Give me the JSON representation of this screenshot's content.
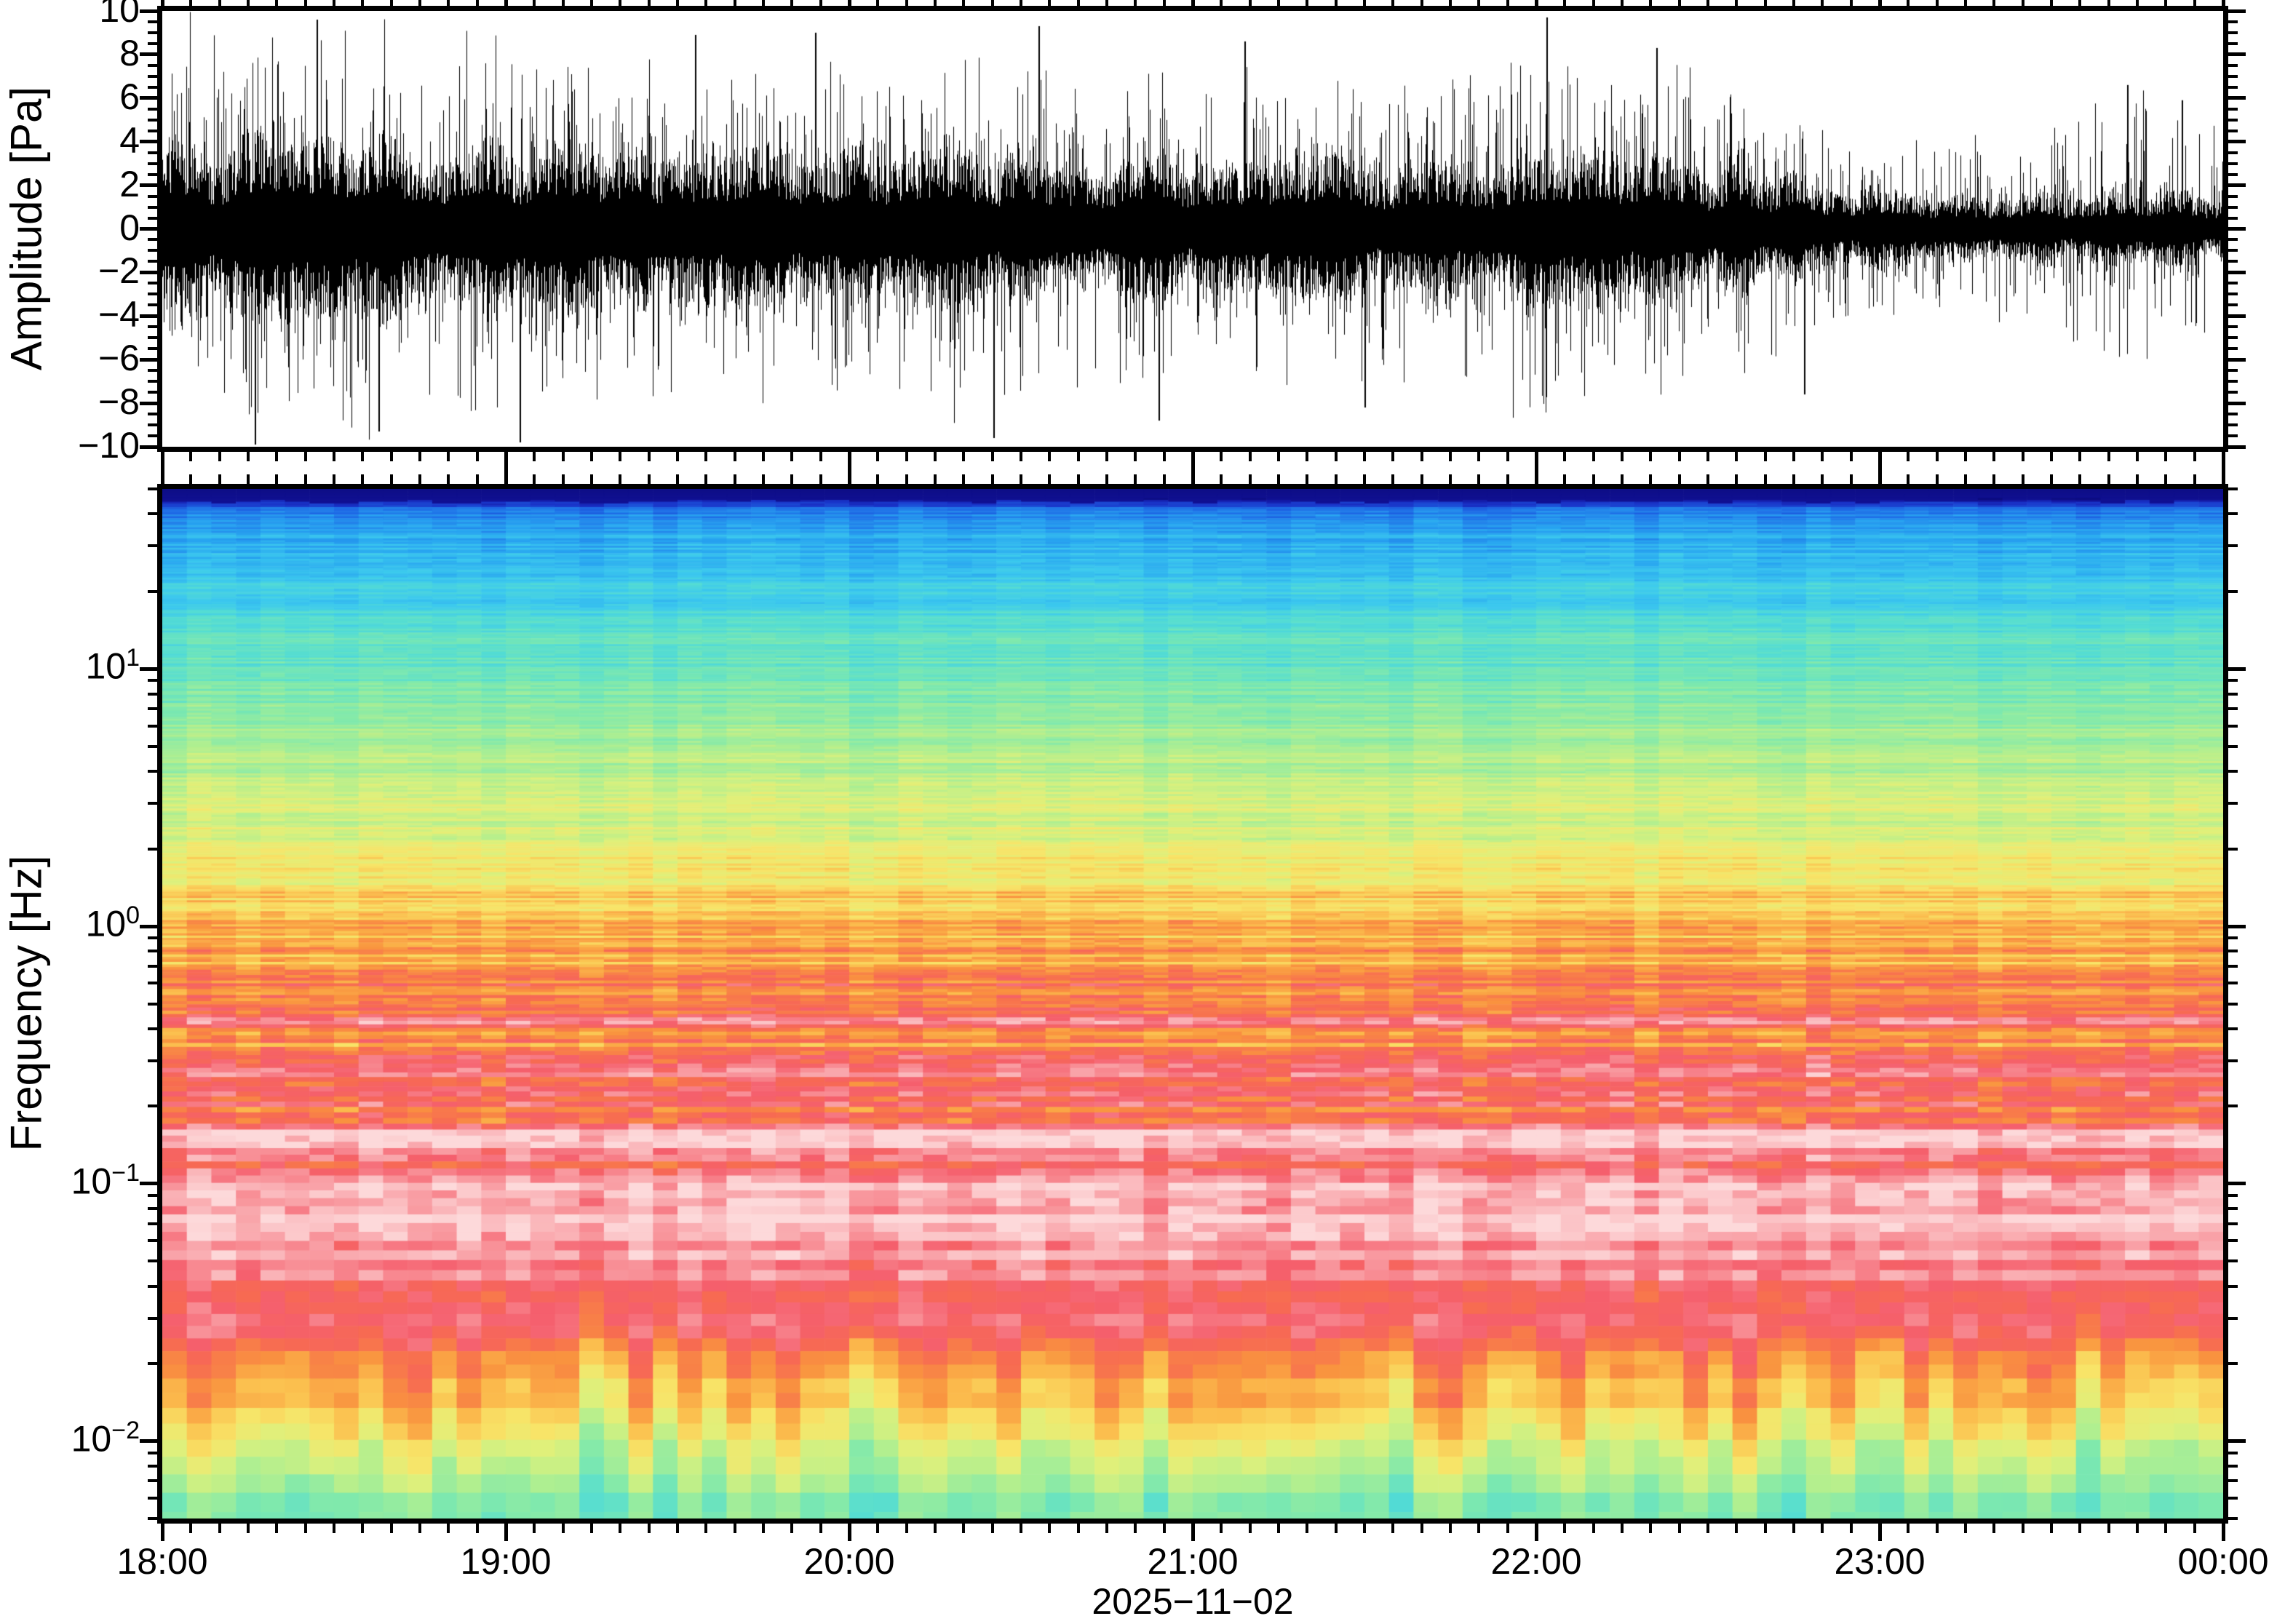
{
  "figure": {
    "background": "#ffffff",
    "kind": "seismo-acoustic waveform and spectrogram",
    "frame_color": "#000000"
  },
  "axes": {
    "amplitude": {
      "title": "Amplitude [Pa]",
      "range": [
        -10,
        10
      ],
      "tick_labels": [
        "10",
        "8",
        "6",
        "4",
        "2",
        "0",
        "−2",
        "−4",
        "−6",
        "−8",
        "−10"
      ],
      "tick_values": [
        10,
        8,
        6,
        4,
        2,
        0,
        -2,
        -4,
        -6,
        -8,
        -10
      ],
      "minor_step": 0.5
    },
    "frequency": {
      "title": "Frequency [Hz]",
      "scale": "log",
      "range_hz": [
        0.005,
        50
      ],
      "decades": [
        {
          "base": "10",
          "exp": "1",
          "value": 10
        },
        {
          "base": "10",
          "exp": "0",
          "value": 1
        },
        {
          "base": "10",
          "exp": "−1",
          "value": 0.1
        },
        {
          "base": "10",
          "exp": "−2",
          "value": 0.01
        }
      ]
    },
    "time": {
      "hour_labels": [
        "18:00",
        "19:00",
        "20:00",
        "21:00",
        "22:00",
        "23:00",
        "00:00"
      ],
      "minor_interval_minutes": 5,
      "date": "2025−11−02"
    }
  },
  "chart_data": [
    {
      "type": "line",
      "name": "pressure-waveform",
      "title": "",
      "ylabel": "Amplitude [Pa]",
      "xlabel": "",
      "x_range_hours": [
        0,
        6
      ],
      "ylim": [
        -10,
        10
      ],
      "line_color": "#000000",
      "envelope_hours": [
        0,
        0.25,
        0.5,
        0.75,
        1,
        1.25,
        1.5,
        1.75,
        2,
        2.25,
        2.5,
        2.75,
        3,
        3.25,
        3.5,
        3.75,
        4,
        4.25,
        4.5,
        4.65,
        4.8,
        5,
        5.15,
        5.3,
        5.5,
        5.7,
        5.85,
        6
      ],
      "envelope_core_pa": [
        2.7,
        2.95,
        3.05,
        2.9,
        2.8,
        2.65,
        2.6,
        2.5,
        2.45,
        2.4,
        2.35,
        2.3,
        2.3,
        2.25,
        2.25,
        2.2,
        2.35,
        2.3,
        2.2,
        2.05,
        1.7,
        1.3,
        1.1,
        1.05,
        1.1,
        1.2,
        1.15,
        1.15
      ],
      "envelope_peak_pa": [
        9.3,
        9.7,
        9.4,
        9.0,
        9.5,
        8.2,
        7.8,
        7.6,
        7.9,
        8.6,
        7.6,
        7.3,
        7.2,
        7.4,
        7.1,
        7.0,
        9.6,
        7.4,
        7.7,
        6.5,
        5.2,
        4.2,
        4.0,
        4.4,
        4.8,
        6.6,
        5.6,
        5.2
      ],
      "extreme_spikes": [
        {
          "t_hours": 0.27,
          "amp_pa": -9.9
        },
        {
          "t_hours": 0.45,
          "amp_pa": 9.6
        },
        {
          "t_hours": 0.63,
          "amp_pa": -9.3
        },
        {
          "t_hours": 1.04,
          "amp_pa": -9.8
        },
        {
          "t_hours": 1.55,
          "amp_pa": 8.9
        },
        {
          "t_hours": 1.9,
          "amp_pa": 9.0
        },
        {
          "t_hours": 2.42,
          "amp_pa": -9.6
        },
        {
          "t_hours": 2.55,
          "amp_pa": 9.3
        },
        {
          "t_hours": 2.9,
          "amp_pa": -8.8
        },
        {
          "t_hours": 3.15,
          "amp_pa": 8.6
        },
        {
          "t_hours": 3.5,
          "amp_pa": -8.2
        },
        {
          "t_hours": 4.03,
          "amp_pa": 9.7
        },
        {
          "t_hours": 4.35,
          "amp_pa": 8.3
        },
        {
          "t_hours": 4.78,
          "amp_pa": -7.6
        },
        {
          "t_hours": 5.72,
          "amp_pa": 6.6
        },
        {
          "t_hours": 5.88,
          "amp_pa": 5.9
        }
      ]
    },
    {
      "type": "heatmap",
      "name": "spectrogram",
      "ylabel": "Frequency [Hz]",
      "xlabel": "2025−11−02",
      "x_range_hours": [
        0,
        6
      ],
      "freq_range_hz": [
        0.005,
        50
      ],
      "columns": 84,
      "column_minutes": 4.3,
      "colormap_stops": [
        [
          0.0,
          "#0a0a78"
        ],
        [
          0.05,
          "#12129b"
        ],
        [
          0.1,
          "#1933c8"
        ],
        [
          0.17,
          "#1e6ae6"
        ],
        [
          0.24,
          "#27a3f0"
        ],
        [
          0.31,
          "#3cc9ee"
        ],
        [
          0.38,
          "#55ddd2"
        ],
        [
          0.45,
          "#7fe9ad"
        ],
        [
          0.52,
          "#b2ef8f"
        ],
        [
          0.58,
          "#dff07b"
        ],
        [
          0.64,
          "#f8e468"
        ],
        [
          0.7,
          "#fbbf4e"
        ],
        [
          0.76,
          "#f9933f"
        ],
        [
          0.82,
          "#f76a52"
        ],
        [
          0.875,
          "#f55f6d"
        ],
        [
          0.92,
          "#f88f96"
        ],
        [
          0.96,
          "#fab4b8"
        ],
        [
          1.0,
          "#fdd9da"
        ]
      ],
      "power_profile_stops": [
        [
          0.0,
          0.03
        ],
        [
          0.011,
          0.06
        ],
        [
          0.018,
          0.16
        ],
        [
          0.035,
          0.24
        ],
        [
          0.08,
          0.3
        ],
        [
          0.13,
          0.36
        ],
        [
          0.175,
          0.42
        ],
        [
          0.24,
          0.49
        ],
        [
          0.3,
          0.55
        ],
        [
          0.36,
          0.615
        ],
        [
          0.425,
          0.695
        ],
        [
          0.48,
          0.755
        ],
        [
          0.54,
          0.81
        ],
        [
          0.6,
          0.85
        ],
        [
          0.66,
          0.872
        ],
        [
          0.72,
          0.878
        ],
        [
          0.78,
          0.875
        ],
        [
          0.81,
          0.868
        ],
        [
          0.845,
          0.8
        ],
        [
          0.87,
          0.73
        ],
        [
          0.9,
          0.645
        ],
        [
          0.925,
          0.565
        ],
        [
          0.955,
          0.49
        ],
        [
          1.0,
          0.435
        ]
      ],
      "notes": "High power (red/pink) 0.02–0.5 Hz microbarom band; orange band near 0.02 Hz; green/cyan below 0.01 Hz; blue at high frequency with navy cap at top"
    }
  ]
}
